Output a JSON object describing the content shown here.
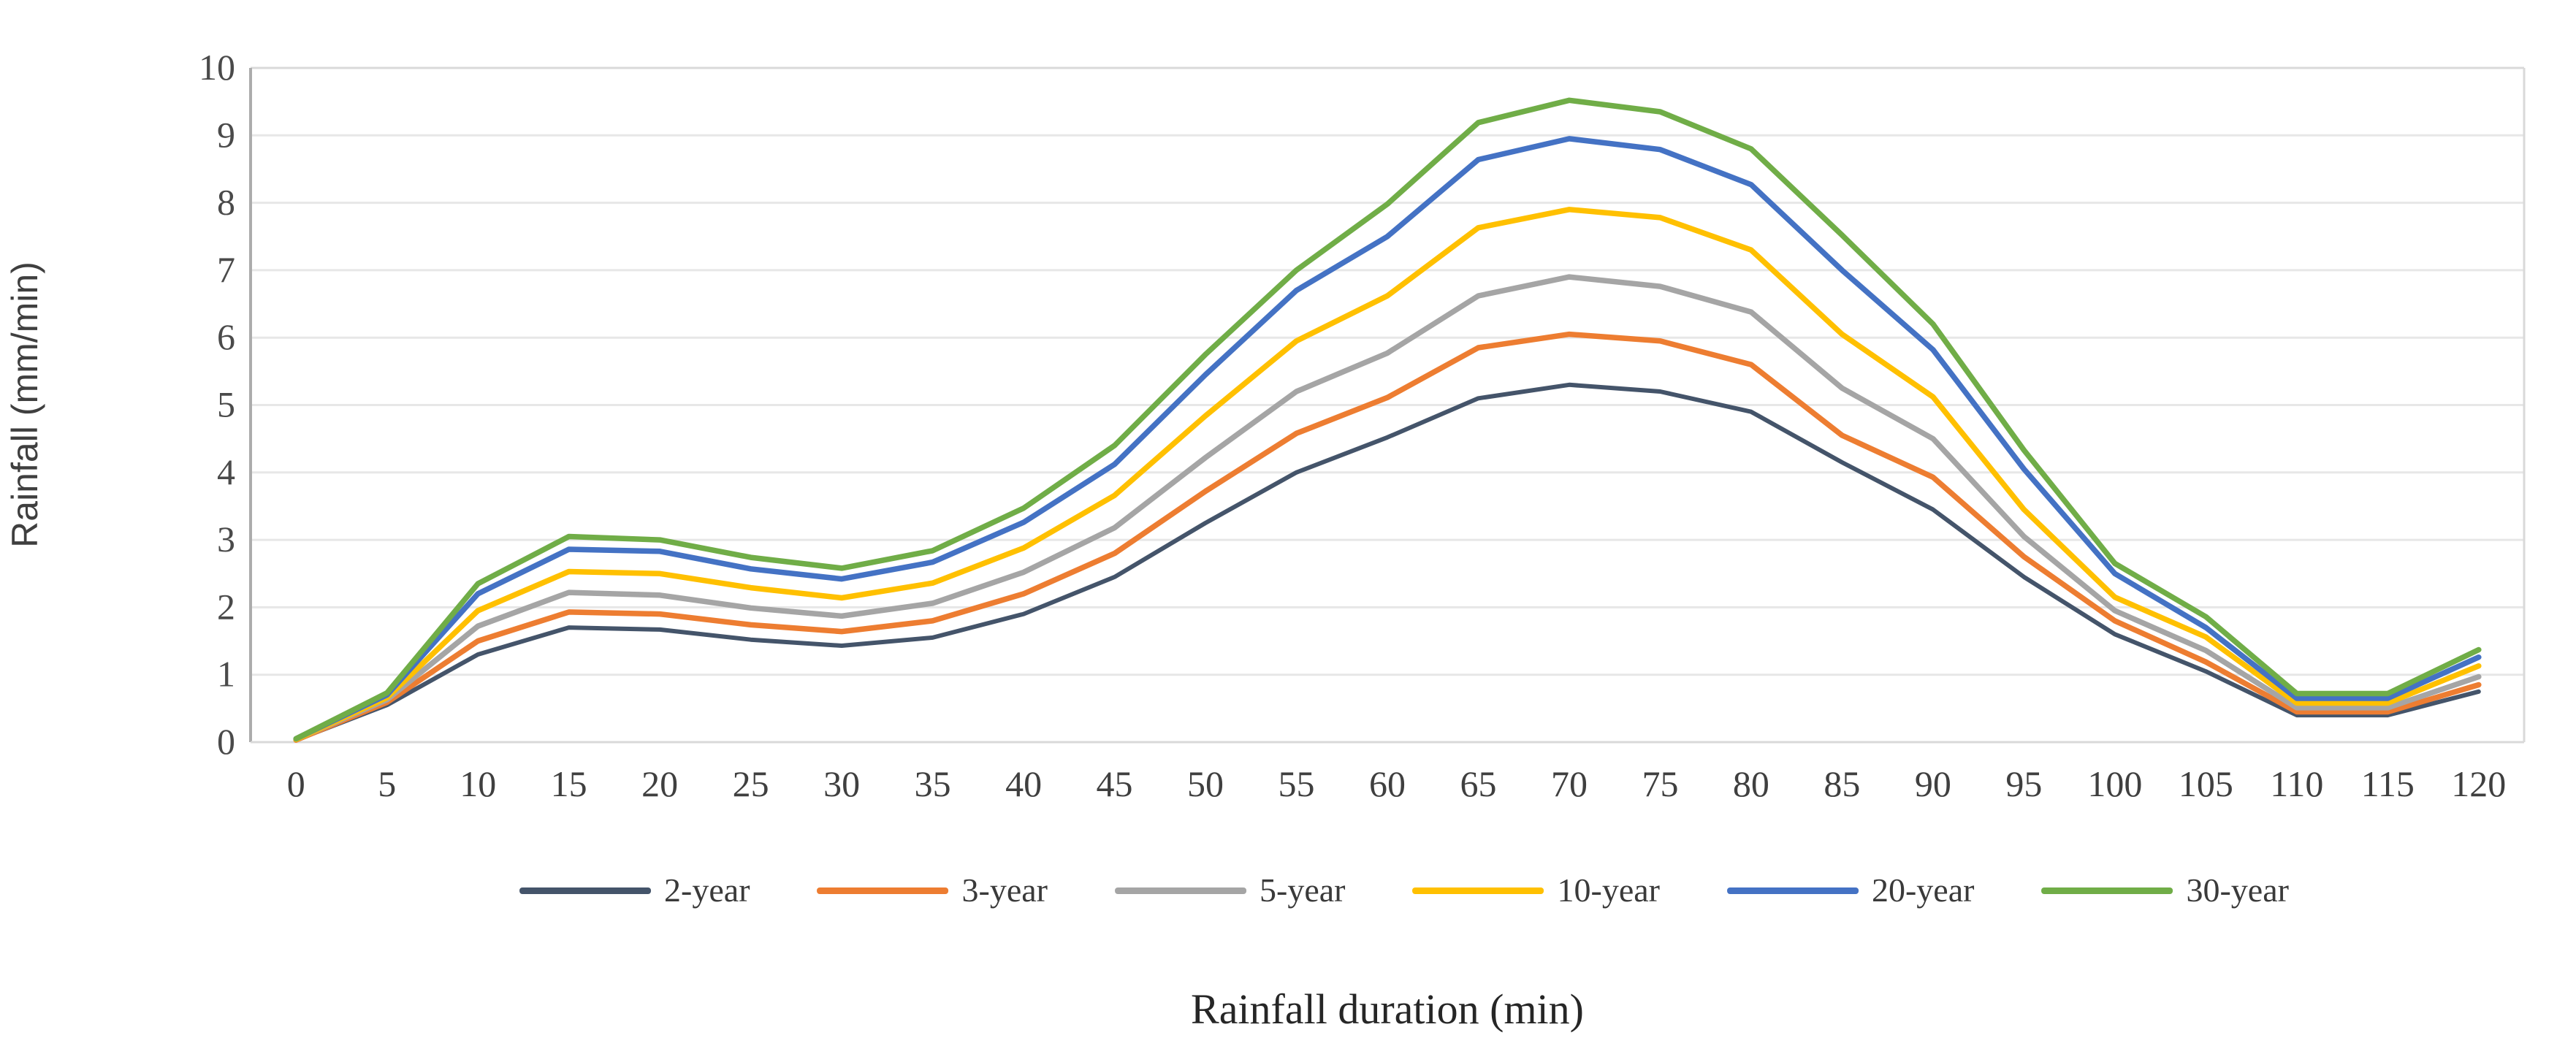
{
  "chart_data": {
    "type": "line",
    "title": "",
    "xlabel": "Rainfall duration (min)",
    "ylabel": "Rainfall (mm/min)",
    "x": [
      0,
      5,
      10,
      15,
      20,
      25,
      30,
      35,
      40,
      45,
      50,
      55,
      60,
      65,
      70,
      75,
      80,
      85,
      90,
      95,
      100,
      105,
      110,
      115,
      120
    ],
    "xlim": [
      0,
      120
    ],
    "ylim": [
      0,
      10
    ],
    "yticks": [
      0,
      1,
      2,
      3,
      4,
      5,
      6,
      7,
      8,
      9,
      10
    ],
    "grid": "horizontal",
    "legend_position": "bottom",
    "series": [
      {
        "name": "2-year",
        "color": "#44546A",
        "values": [
          0.03,
          0.55,
          1.3,
          1.7,
          1.67,
          1.52,
          1.43,
          1.55,
          1.9,
          2.45,
          3.25,
          4.0,
          4.52,
          5.1,
          5.3,
          5.2,
          4.9,
          4.15,
          3.45,
          2.45,
          1.6,
          1.05,
          0.4,
          0.4,
          0.75
        ]
      },
      {
        "name": "3-year",
        "color": "#ED7D31",
        "values": [
          0.03,
          0.59,
          1.5,
          1.93,
          1.9,
          1.74,
          1.64,
          1.8,
          2.2,
          2.8,
          3.72,
          4.58,
          5.11,
          5.85,
          6.05,
          5.95,
          5.6,
          4.55,
          3.93,
          2.75,
          1.8,
          1.19,
          0.45,
          0.45,
          0.85
        ]
      },
      {
        "name": "5-year",
        "color": "#A5A5A5",
        "values": [
          0.04,
          0.63,
          1.72,
          2.22,
          2.18,
          1.99,
          1.87,
          2.06,
          2.52,
          3.18,
          4.22,
          5.2,
          5.77,
          6.62,
          6.9,
          6.76,
          6.38,
          5.25,
          4.5,
          3.05,
          1.95,
          1.36,
          0.51,
          0.51,
          0.97
        ]
      },
      {
        "name": "10-year",
        "color": "#FFC000",
        "values": [
          0.04,
          0.66,
          1.95,
          2.53,
          2.5,
          2.29,
          2.14,
          2.36,
          2.88,
          3.66,
          4.84,
          5.95,
          6.62,
          7.63,
          7.9,
          7.78,
          7.3,
          6.05,
          5.12,
          3.45,
          2.15,
          1.56,
          0.58,
          0.58,
          1.13
        ]
      },
      {
        "name": "20-year",
        "color": "#4472C4",
        "values": [
          0.05,
          0.7,
          2.2,
          2.86,
          2.83,
          2.57,
          2.42,
          2.67,
          3.26,
          4.12,
          5.45,
          6.7,
          7.5,
          8.64,
          8.95,
          8.79,
          8.27,
          7.0,
          5.82,
          4.05,
          2.5,
          1.7,
          0.65,
          0.65,
          1.26
        ]
      },
      {
        "name": "30-year",
        "color": "#70AD47",
        "values": [
          0.05,
          0.73,
          2.35,
          3.05,
          3.0,
          2.74,
          2.58,
          2.84,
          3.47,
          4.4,
          5.75,
          7.0,
          7.98,
          9.19,
          9.52,
          9.35,
          8.8,
          7.52,
          6.2,
          4.33,
          2.65,
          1.86,
          0.72,
          0.72,
          1.37
        ]
      }
    ]
  }
}
